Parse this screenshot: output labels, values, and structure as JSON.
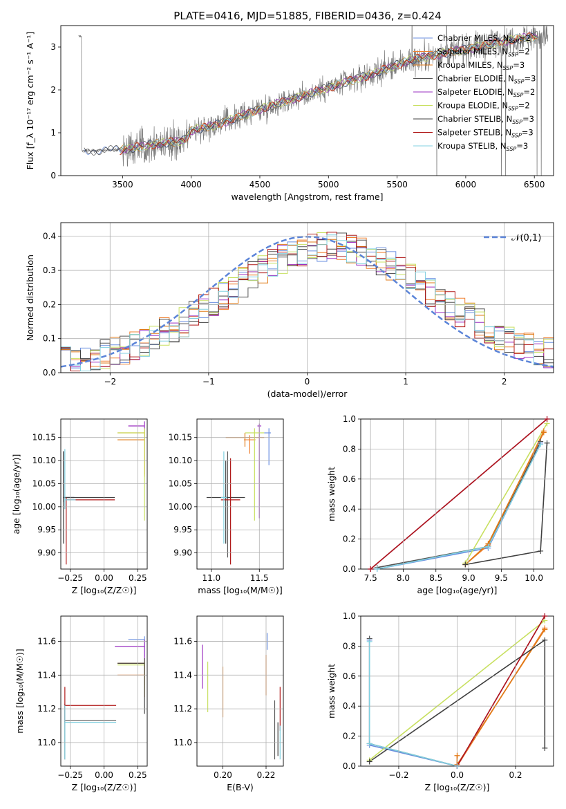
{
  "figure": {
    "title": "PLATE=0416, MJD=51885, FIBERID=0436, z=0.424"
  },
  "colors": {
    "series": [
      "#6a8fe0",
      "#f08030",
      "#e07a16",
      "#555555",
      "#9a2fc0",
      "#c8e060",
      "#404040",
      "#b01818",
      "#80d0e0"
    ],
    "spectrum": "#7a7a7a",
    "normal": "#5b84d8",
    "grid": "#b0b0b0"
  },
  "chart_data": [
    {
      "id": "spectrum",
      "type": "line",
      "xlabel": "wavelength [Angstrom, rest frame]",
      "ylabel": "Flux [f_λ 10⁻¹⁷ erg cm⁻² s⁻¹ A⁻¹]",
      "xlim": [
        3050,
        6640
      ],
      "ylim": [
        0,
        3.5
      ],
      "xticks": [
        "3500",
        "4000",
        "4500",
        "5000",
        "5500",
        "6000",
        "6500"
      ],
      "yticks": [
        "0",
        "1",
        "2",
        "3"
      ],
      "grid": false,
      "legend": "right",
      "legend_entries": [
        {
          "imf": "Chabrier",
          "lib": "MILES",
          "n": "2"
        },
        {
          "imf": "Salpeter",
          "lib": "MILES",
          "n": "2"
        },
        {
          "imf": "Kroupa",
          "lib": "MILES",
          "n": "3"
        },
        {
          "imf": "Chabrier",
          "lib": "ELODIE",
          "n": "3"
        },
        {
          "imf": "Salpeter",
          "lib": "ELODIE",
          "n": "2"
        },
        {
          "imf": "Kroupa",
          "lib": "ELODIE",
          "n": "2"
        },
        {
          "imf": "Chabrier",
          "lib": "STELIB",
          "n": "3"
        },
        {
          "imf": "Salpeter",
          "lib": "STELIB",
          "n": "3"
        },
        {
          "imf": "Kroupa",
          "lib": "STELIB",
          "n": "3"
        }
      ],
      "model_trend": [
        [
          3200,
          0.58
        ],
        [
          3500,
          0.6
        ],
        [
          3700,
          0.72
        ],
        [
          3950,
          0.82
        ],
        [
          4000,
          1.05
        ],
        [
          4200,
          1.2
        ],
        [
          4500,
          1.55
        ],
        [
          4800,
          1.85
        ],
        [
          5000,
          2.05
        ],
        [
          5300,
          2.35
        ],
        [
          5600,
          2.7
        ],
        [
          6000,
          2.95
        ],
        [
          6300,
          3.15
        ],
        [
          6500,
          3.25
        ]
      ],
      "observed_range": [
        3180,
        6600
      ]
    },
    {
      "id": "residuals",
      "type": "line",
      "xlabel": "(data-model)/error",
      "ylabel": "Normed distribution",
      "xlim": [
        -2.5,
        2.5
      ],
      "ylim": [
        0,
        0.44
      ],
      "xticks": [
        "−2",
        "−1",
        "0",
        "1",
        "2"
      ],
      "yticks": [
        "0.0",
        "0.1",
        "0.2",
        "0.3",
        "0.4"
      ],
      "grid": true,
      "legend": "top-right",
      "normal_label": "𝒩(0,1)",
      "bin_width": 0.1
    },
    {
      "id": "age-vs-Z",
      "type": "scatter",
      "xlabel": "Z [log₁₀(Z/Z☉)]",
      "ylabel": "age  [log₁₀(age/yr)]",
      "xlim": [
        -0.32,
        0.32
      ],
      "ylim": [
        9.865,
        10.19
      ],
      "xticks": [
        "−0.25",
        "0.00",
        "0.25"
      ],
      "yticks": [
        "9.90",
        "9.95",
        "10.00",
        "10.05",
        "10.10",
        "10.15"
      ],
      "grid": true,
      "points": [
        {
          "x": -0.3,
          "y": 10.02,
          "xerr": [
            0,
            0.08
          ],
          "yerr": [
            0.01,
            0.1
          ]
        },
        {
          "x": 0.3,
          "y": 10.16,
          "xerr": [
            0.2,
            0
          ],
          "yerr": [
            0.09,
            0.01
          ]
        },
        {
          "x": 0.3,
          "y": 10.145,
          "xerr": [
            0.2,
            0
          ],
          "yerr": [
            0.08,
            0.02
          ]
        },
        {
          "x": -0.3,
          "y": 10.02,
          "xerr": [
            0,
            0.08
          ],
          "yerr": [
            0.01,
            0.1
          ]
        },
        {
          "x": 0.3,
          "y": 10.175,
          "xerr": [
            0.12,
            0
          ],
          "yerr": [
            0.01,
            0.01
          ]
        },
        {
          "x": 0.3,
          "y": 10.16,
          "xerr": [
            0.2,
            0
          ],
          "yerr": [
            0.19,
            0.01
          ]
        },
        {
          "x": -0.3,
          "y": 10.02,
          "xerr": [
            0,
            0.38
          ],
          "yerr": [
            0.1,
            0.1
          ]
        },
        {
          "x": -0.28,
          "y": 10.015,
          "xerr": [
            0,
            0.36
          ],
          "yerr": [
            0.14,
            0.005
          ]
        },
        {
          "x": -0.29,
          "y": 10.015,
          "xerr": [
            0,
            0.08
          ],
          "yerr": [
            0.02,
            0.11
          ]
        }
      ]
    },
    {
      "id": "age-vs-mass",
      "type": "scatter",
      "xlabel": "mass [log₁₀(M/M☉)]",
      "ylabel": "",
      "xlim": [
        10.85,
        11.75
      ],
      "ylim": [
        9.865,
        10.19
      ],
      "xticks": [
        "11.0",
        "11.5"
      ],
      "yticks": [
        "9.90",
        "9.95",
        "10.00",
        "10.05",
        "10.10",
        "10.15"
      ],
      "grid": true,
      "points": [
        {
          "x": 11.6,
          "y": 10.16,
          "xerr": [
            0.05,
            0.02
          ],
          "yerr": [
            0.07,
            0.01
          ]
        },
        {
          "x": 11.4,
          "y": 10.145,
          "xerr": [
            0.06,
            0.06
          ],
          "yerr": [
            0.03,
            0.01
          ]
        },
        {
          "x": 11.35,
          "y": 10.15,
          "xerr": [
            0.2,
            0.2
          ],
          "yerr": [
            0.02,
            0.01
          ]
        },
        {
          "x": 11.17,
          "y": 10.02,
          "xerr": [
            0.05,
            0.05
          ],
          "yerr": [
            0.13,
            0.1
          ]
        },
        {
          "x": 11.5,
          "y": 10.175,
          "xerr": [
            0.02,
            0.02
          ],
          "yerr": [
            0.2,
            0.005
          ]
        },
        {
          "x": 11.45,
          "y": 10.16,
          "xerr": [
            0.1,
            0.1
          ],
          "yerr": [
            0.19,
            0.01
          ]
        },
        {
          "x": 11.15,
          "y": 10.02,
          "xerr": [
            0.2,
            0.2
          ],
          "yerr": [
            0.1,
            0.08
          ]
        },
        {
          "x": 11.2,
          "y": 10.015,
          "xerr": [
            0.1,
            0.1
          ],
          "yerr": [
            0.14,
            0.09
          ]
        },
        {
          "x": 11.13,
          "y": 10.02,
          "xerr": [
            0.03,
            0.03
          ],
          "yerr": [
            0.1,
            0.1
          ]
        }
      ]
    },
    {
      "id": "weight-vs-age",
      "type": "line",
      "xlabel": "age  [log₁₀(age/yr)]",
      "ylabel": "mass weight",
      "xlim": [
        7.35,
        10.3
      ],
      "ylim": [
        0,
        1
      ],
      "xticks": [
        "7.5",
        "8.0",
        "8.5",
        "9.0",
        "9.5",
        "10.0"
      ],
      "yticks": [
        "0.0",
        "0.2",
        "0.4",
        "0.6",
        "0.8",
        "1.0"
      ],
      "grid": true,
      "lines": [
        {
          "color": 0,
          "points": [
            [
              7.6,
              0.0
            ],
            [
              9.3,
              0.14
            ],
            [
              10.1,
              0.84
            ]
          ]
        },
        {
          "color": 1,
          "points": [
            [
              8.95,
              0.03
            ],
            [
              9.3,
              0.16
            ],
            [
              10.15,
              0.92
            ]
          ]
        },
        {
          "color": 2,
          "points": [
            [
              8.95,
              0.03
            ],
            [
              9.3,
              0.17
            ],
            [
              10.15,
              0.91
            ]
          ]
        },
        {
          "color": 3,
          "points": [
            [
              7.6,
              0.01
            ],
            [
              9.3,
              0.15
            ],
            [
              10.1,
              0.85
            ]
          ]
        },
        {
          "color": 4,
          "points": [
            [
              7.5,
              0.0
            ],
            [
              10.2,
              1.0
            ]
          ]
        },
        {
          "color": 5,
          "points": [
            [
              8.95,
              0.04
            ],
            [
              10.2,
              0.97
            ]
          ]
        },
        {
          "color": 6,
          "points": [
            [
              8.95,
              0.03
            ],
            [
              10.1,
              0.12
            ],
            [
              10.2,
              0.84
            ]
          ]
        },
        {
          "color": 7,
          "points": [
            [
              7.5,
              0.0
            ],
            [
              10.2,
              1.0
            ]
          ]
        },
        {
          "color": 8,
          "points": [
            [
              7.6,
              0.0
            ],
            [
              9.3,
              0.15
            ],
            [
              10.1,
              0.83
            ]
          ]
        }
      ]
    },
    {
      "id": "mass-vs-Z",
      "type": "scatter",
      "xlabel": "Z [log₁₀(Z/Z☉)]",
      "ylabel": "mass [log₁₀(M/M☉)]",
      "xlim": [
        -0.32,
        0.32
      ],
      "ylim": [
        10.86,
        11.75
      ],
      "xticks": [
        "−0.25",
        "0.00",
        "0.25"
      ],
      "yticks": [
        "11.0",
        "11.2",
        "11.4",
        "11.6"
      ],
      "grid": true,
      "points": [
        {
          "x": 0.3,
          "y": 11.61,
          "xerr": [
            0.12,
            0
          ],
          "yerr": [
            0.1,
            0.02
          ]
        },
        {
          "x": 0.3,
          "y": 11.4,
          "xerr": [
            0.2,
            0
          ],
          "yerr": [
            0.06,
            0.06
          ]
        },
        {
          "x": 0.3,
          "y": 11.47,
          "xerr": [
            0.2,
            0
          ],
          "yerr": [
            0.2,
            0.02
          ]
        },
        {
          "x": -0.29,
          "y": 11.13,
          "xerr": [
            0,
            0.38
          ],
          "yerr": [
            0.23,
            0.1
          ]
        },
        {
          "x": 0.3,
          "y": 11.57,
          "xerr": [
            0.22,
            0
          ],
          "yerr": [
            0.08,
            0.04
          ]
        },
        {
          "x": 0.3,
          "y": 11.46,
          "xerr": [
            0.2,
            0
          ],
          "yerr": [
            0.17,
            0.02
          ]
        },
        {
          "x": 0.3,
          "y": 11.47,
          "xerr": [
            0.2,
            0
          ],
          "yerr": [
            0.3,
            0.03
          ]
        },
        {
          "x": -0.29,
          "y": 11.22,
          "xerr": [
            0,
            0.38
          ],
          "yerr": [
            0.1,
            0.11
          ]
        },
        {
          "x": -0.29,
          "y": 11.12,
          "xerr": [
            0,
            0.38
          ],
          "yerr": [
            0.22,
            0.1
          ]
        }
      ]
    },
    {
      "id": "mass-vs-ebv",
      "type": "scatter",
      "xlabel": "E(B-V)",
      "ylabel": "",
      "xlim": [
        0.188,
        0.228
      ],
      "ylim": [
        10.86,
        11.75
      ],
      "xticks": [
        "0.20",
        "0.22"
      ],
      "yticks": [
        "11.0",
        "11.2",
        "11.4",
        "11.6"
      ],
      "grid": true,
      "points": [
        {
          "x": 0.2205,
          "y": 11.6,
          "yerr": [
            0.05,
            0.05
          ]
        },
        {
          "x": 0.22,
          "y": 11.4,
          "yerr": [
            0.12,
            0.12
          ]
        },
        {
          "x": 0.2,
          "y": 11.3,
          "yerr": [
            0.15,
            0.15
          ]
        },
        {
          "x": 0.224,
          "y": 11.1,
          "yerr": [
            0.2,
            0.15
          ]
        },
        {
          "x": 0.1905,
          "y": 11.45,
          "yerr": [
            0.13,
            0.13
          ]
        },
        {
          "x": 0.193,
          "y": 11.33,
          "yerr": [
            0.15,
            0.15
          ]
        },
        {
          "x": 0.2255,
          "y": 11.02,
          "yerr": [
            0.1,
            0.1
          ]
        },
        {
          "x": 0.2265,
          "y": 11.2,
          "yerr": [
            0.13,
            0.13
          ]
        },
        {
          "x": 0.2265,
          "y": 11.0,
          "yerr": [
            0.1,
            0.1
          ]
        }
      ]
    },
    {
      "id": "weight-vs-Z",
      "type": "line",
      "xlabel": "Z [log₁₀(Z/Z☉)]",
      "ylabel": "mass weight",
      "xlim": [
        -0.33,
        0.33
      ],
      "ylim": [
        0,
        1
      ],
      "xticks": [
        "−0.2",
        "0.0",
        "0.2"
      ],
      "yticks": [
        "0.0",
        "0.2",
        "0.4",
        "0.6",
        "0.8",
        "1.0"
      ],
      "grid": true,
      "lines": [
        {
          "color": 0,
          "points": [
            [
              -0.3,
              0.84
            ],
            [
              -0.3,
              0.14
            ],
            [
              0.0,
              0.0
            ]
          ]
        },
        {
          "color": 1,
          "points": [
            [
              0.0,
              0.07
            ],
            [
              0.0,
              0.0
            ],
            [
              0.3,
              0.92
            ]
          ]
        },
        {
          "color": 2,
          "points": [
            [
              0.0,
              0.07
            ],
            [
              0.0,
              0.01
            ],
            [
              0.3,
              0.91
            ]
          ]
        },
        {
          "color": 3,
          "points": [
            [
              -0.3,
              0.85
            ],
            [
              -0.3,
              0.15
            ],
            [
              0.0,
              0.0
            ]
          ]
        },
        {
          "color": 4,
          "points": [
            [
              0.0,
              0.0
            ],
            [
              0.3,
              1.0
            ]
          ]
        },
        {
          "color": 5,
          "points": [
            [
              -0.3,
              0.04
            ],
            [
              0.3,
              0.97
            ]
          ]
        },
        {
          "color": 6,
          "points": [
            [
              -0.3,
              0.03
            ],
            [
              0.3,
              0.84
            ],
            [
              0.3,
              0.12
            ]
          ]
        },
        {
          "color": 7,
          "points": [
            [
              0.0,
              0.0
            ],
            [
              0.3,
              1.0
            ]
          ]
        },
        {
          "color": 8,
          "points": [
            [
              -0.3,
              0.83
            ],
            [
              -0.3,
              0.15
            ],
            [
              0.0,
              0.0
            ]
          ]
        }
      ]
    }
  ]
}
